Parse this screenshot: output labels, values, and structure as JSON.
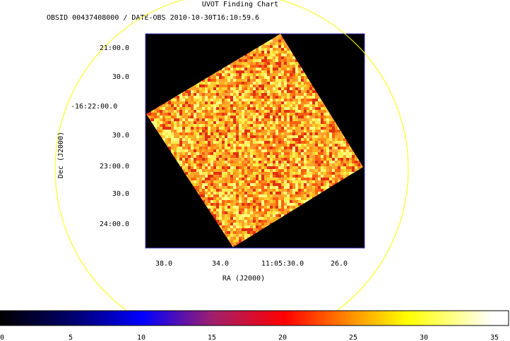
{
  "header": {
    "title": "UVOT Finding Chart",
    "subtitle": "OBSID 00437408000 / DATE-OBS 2010-10-30T16:10:59.6"
  },
  "axes": {
    "x_label": "RA (J2000)",
    "y_label": "Dec (J2000)",
    "x_ticks": [
      "38.0",
      "34.0",
      "11:05:30.0",
      "26.0"
    ],
    "y_ticks": [
      "21:00.0",
      "30.0",
      "-16:22:00.0",
      "30.0",
      "23:00.0",
      "30.0",
      "24:00.0"
    ]
  },
  "colorbar": {
    "ticks": [
      "0",
      "5",
      "10",
      "15",
      "20",
      "25",
      "30",
      "35"
    ]
  }
}
